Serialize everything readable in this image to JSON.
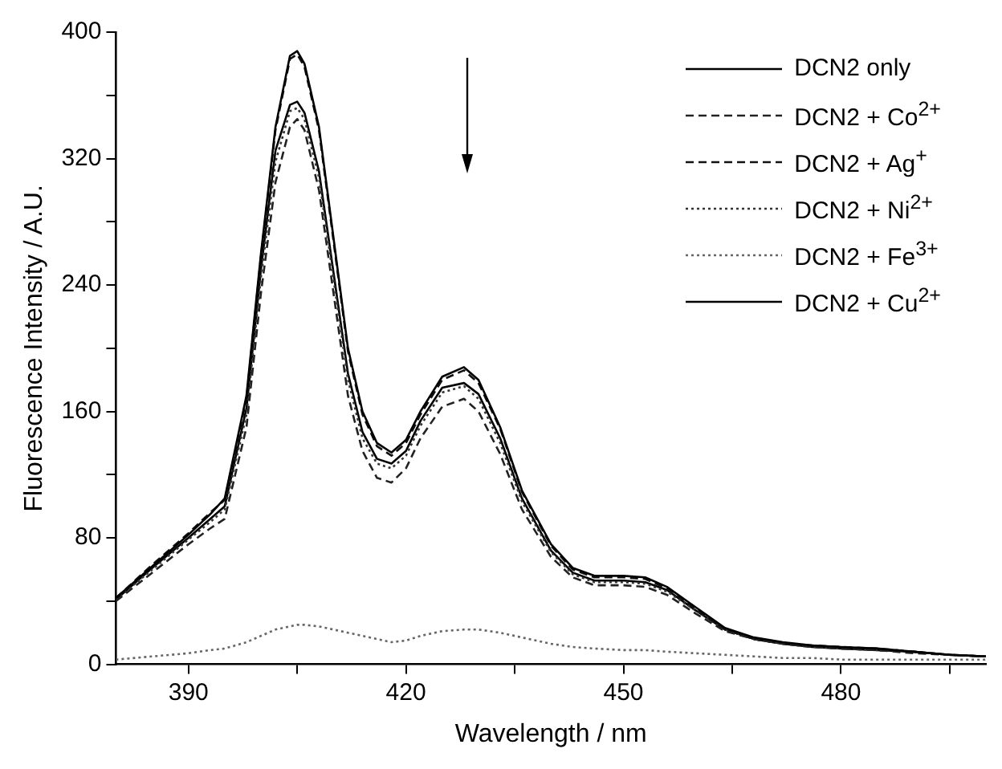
{
  "chart_data": {
    "type": "line",
    "xlabel": "Wavelength / nm",
    "ylabel": "Fluorescence Intensity / A.U.",
    "xlim": [
      380,
      500
    ],
    "xticks": [
      {
        "value": 390,
        "label": "390"
      },
      {
        "value": 405,
        "label": null
      },
      {
        "value": 420,
        "label": "420"
      },
      {
        "value": 435,
        "label": null
      },
      {
        "value": 450,
        "label": "450"
      },
      {
        "value": 465,
        "label": null
      },
      {
        "value": 480,
        "label": "480"
      },
      {
        "value": 495,
        "label": null
      }
    ],
    "ylim": [
      0,
      400
    ],
    "yticks": [
      0,
      {
        "value": 40,
        "label": null
      },
      80,
      {
        "value": 120,
        "label": null
      },
      160,
      {
        "value": 200,
        "label": null
      },
      240,
      {
        "value": 280,
        "label": null
      },
      320,
      {
        "value": 360,
        "label": null
      },
      400
    ],
    "grid": false,
    "legend": "top right",
    "marker": "none",
    "x": [
      380,
      385,
      390,
      393,
      395,
      398,
      400,
      402,
      404,
      405,
      406,
      408,
      410,
      412,
      414,
      416,
      418,
      420,
      422,
      425,
      428,
      430,
      433,
      436,
      440,
      443,
      446,
      450,
      453,
      456,
      460,
      464,
      468,
      472,
      476,
      480,
      485,
      490,
      495,
      500
    ],
    "series": [
      {
        "name": "DCN2 only",
        "color": "#000000",
        "line_style": "solid",
        "values": [
          42,
          62,
          82,
          95,
          105,
          170,
          260,
          340,
          385,
          388,
          380,
          340,
          270,
          200,
          160,
          140,
          134,
          142,
          160,
          182,
          188,
          180,
          150,
          110,
          76,
          61,
          56,
          56,
          55,
          49,
          36,
          23,
          17,
          14,
          12,
          11,
          10,
          8,
          6,
          5
        ]
      },
      {
        "name": "DCN2 + Co$^{2+}$",
        "color": "#222222",
        "line_style": "dashed",
        "values": [
          40,
          58,
          76,
          86,
          92,
          150,
          235,
          305,
          340,
          345,
          338,
          300,
          235,
          170,
          135,
          118,
          115,
          124,
          143,
          163,
          168,
          160,
          133,
          98,
          68,
          55,
          50,
          50,
          49,
          44,
          32,
          21,
          16,
          13,
          11,
          10,
          9,
          7,
          6,
          5
        ]
      },
      {
        "name": "DCN2 + Ag$^{+}$",
        "color": "#111111",
        "line_style": "dashed",
        "values": [
          42,
          63,
          83,
          96,
          104,
          168,
          258,
          338,
          383,
          386,
          378,
          338,
          268,
          198,
          158,
          138,
          132,
          140,
          158,
          180,
          186,
          178,
          149,
          109,
          75,
          60,
          55,
          55,
          54,
          48,
          35,
          22,
          16,
          13,
          12,
          11,
          10,
          8,
          6,
          5
        ]
      },
      {
        "name": "DCN2 + Ni$^{2+}$",
        "color": "#333333",
        "line_style": "dotted",
        "values": [
          41,
          60,
          79,
          90,
          98,
          158,
          245,
          318,
          350,
          352,
          345,
          308,
          244,
          180,
          143,
          127,
          124,
          132,
          151,
          172,
          176,
          168,
          140,
          103,
          71,
          57,
          52,
          52,
          51,
          46,
          34,
          22,
          16,
          13,
          11,
          10,
          9,
          8,
          6,
          5
        ]
      },
      {
        "name": "DCN2 + Fe$^{3+}$",
        "color": "#666666",
        "line_style": "dotted",
        "values": [
          3,
          5,
          7,
          9,
          10,
          14,
          18,
          22,
          24,
          25,
          25,
          24,
          22,
          20,
          18,
          16,
          14,
          15,
          18,
          21,
          22,
          22,
          20,
          17,
          13,
          11,
          10,
          9,
          9,
          8,
          7,
          6,
          5,
          4,
          4,
          3,
          3,
          3,
          3,
          3
        ]
      },
      {
        "name": "DCN2 + Cu$^{2+}$",
        "color": "#000000",
        "line_style": "solid",
        "values": [
          41,
          61,
          80,
          92,
          100,
          162,
          250,
          325,
          354,
          356,
          349,
          312,
          248,
          184,
          147,
          130,
          127,
          135,
          154,
          175,
          178,
          171,
          143,
          105,
          72,
          58,
          53,
          53,
          52,
          47,
          34,
          22,
          16,
          13,
          11,
          10,
          9,
          8,
          6,
          5
        ]
      }
    ]
  }
}
